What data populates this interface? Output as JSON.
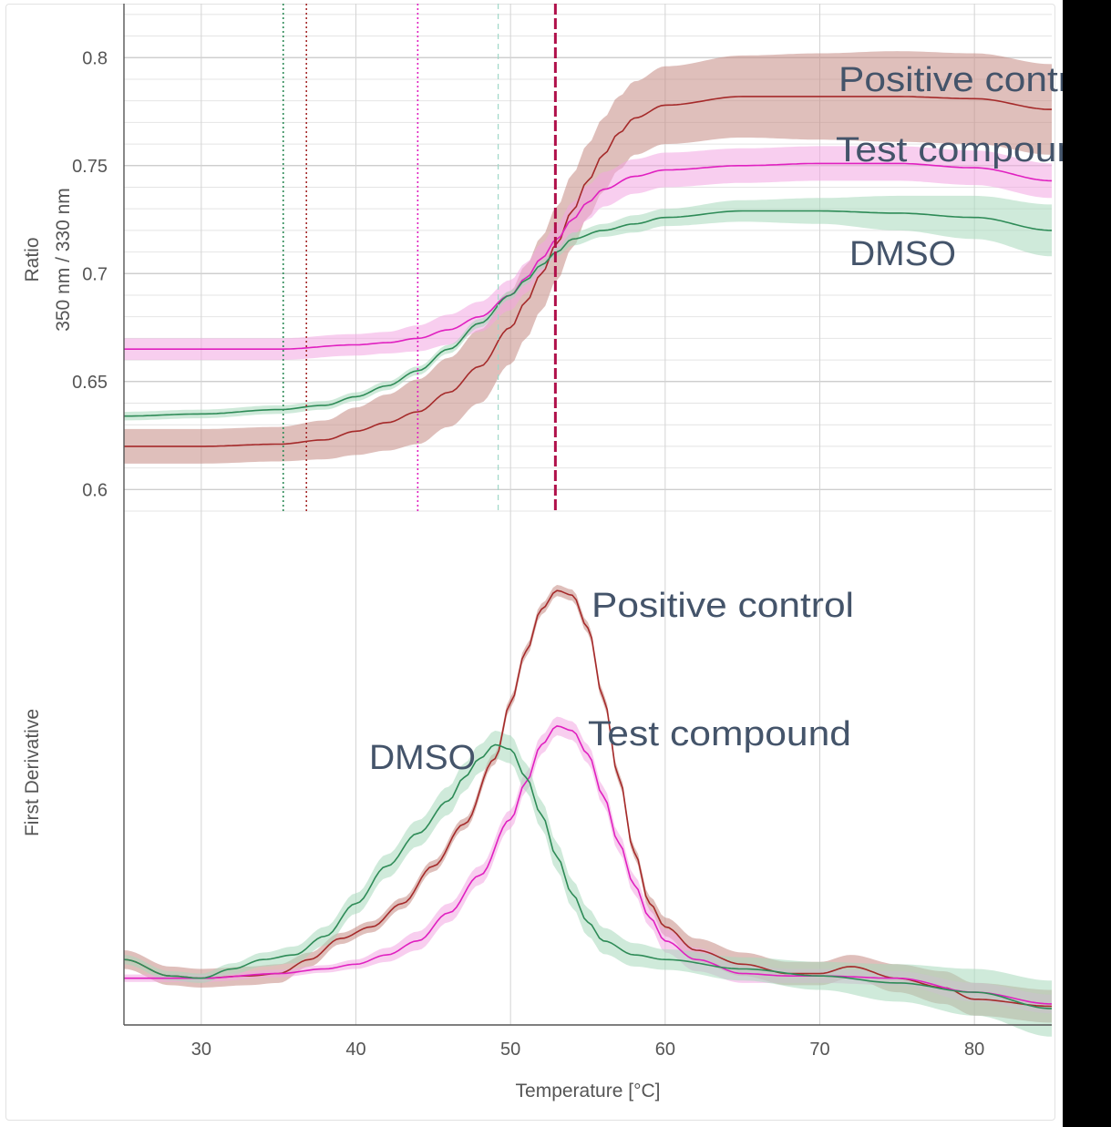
{
  "chart_data": [
    {
      "type": "line",
      "ylabel": [
        "Ratio",
        "350 nm / 330 nm"
      ],
      "xlim": [
        25,
        85
      ],
      "ylim": [
        0.59,
        0.825
      ],
      "y_ticks": [
        0.6,
        0.65,
        0.7,
        0.75,
        0.8
      ],
      "y_tick_labels": [
        "0.6",
        "0.65",
        "0.7",
        "0.75",
        "0.8"
      ],
      "grid": true,
      "series": [
        {
          "name": "Positive control",
          "color": "#a52a2a",
          "band_color": "#c48a84",
          "x": [
            25,
            30,
            35,
            38,
            40,
            42,
            44,
            46,
            48,
            50,
            51,
            52,
            53,
            54,
            55,
            56,
            57,
            58,
            60,
            65,
            70,
            75,
            80,
            85
          ],
          "y": [
            0.62,
            0.62,
            0.621,
            0.623,
            0.627,
            0.631,
            0.636,
            0.645,
            0.657,
            0.675,
            0.687,
            0.7,
            0.714,
            0.729,
            0.743,
            0.755,
            0.765,
            0.772,
            0.778,
            0.782,
            0.782,
            0.782,
            0.781,
            0.776
          ],
          "band": [
            0.008,
            0.008,
            0.008,
            0.009,
            0.011,
            0.013,
            0.015,
            0.016,
            0.017,
            0.017,
            0.017,
            0.017,
            0.017,
            0.017,
            0.017,
            0.017,
            0.017,
            0.017,
            0.018,
            0.019,
            0.02,
            0.021,
            0.021,
            0.021
          ]
        },
        {
          "name": "Test compound",
          "color": "#e020c0",
          "band_color": "#f2a6e2",
          "x": [
            25,
            30,
            35,
            40,
            42,
            44,
            46,
            48,
            50,
            51,
            52,
            53,
            54,
            55,
            56,
            58,
            60,
            65,
            70,
            75,
            80,
            85
          ],
          "y": [
            0.665,
            0.665,
            0.665,
            0.667,
            0.668,
            0.67,
            0.674,
            0.68,
            0.69,
            0.698,
            0.707,
            0.716,
            0.725,
            0.733,
            0.739,
            0.745,
            0.748,
            0.75,
            0.751,
            0.751,
            0.749,
            0.743
          ],
          "band": [
            0.005,
            0.005,
            0.005,
            0.005,
            0.005,
            0.006,
            0.007,
            0.007,
            0.007,
            0.007,
            0.007,
            0.007,
            0.008,
            0.008,
            0.008,
            0.008,
            0.008,
            0.008,
            0.008,
            0.008,
            0.008,
            0.008
          ]
        },
        {
          "name": "DMSO",
          "color": "#2e8b57",
          "band_color": "#a8d8bc",
          "x": [
            25,
            30,
            35,
            38,
            40,
            42,
            44,
            46,
            48,
            50,
            51,
            52,
            53,
            54,
            56,
            58,
            60,
            65,
            70,
            75,
            80,
            85
          ],
          "y": [
            0.634,
            0.635,
            0.637,
            0.639,
            0.643,
            0.648,
            0.655,
            0.665,
            0.677,
            0.69,
            0.697,
            0.704,
            0.71,
            0.716,
            0.72,
            0.723,
            0.726,
            0.729,
            0.729,
            0.728,
            0.726,
            0.72
          ],
          "band": [
            0.002,
            0.002,
            0.002,
            0.002,
            0.002,
            0.002,
            0.002,
            0.002,
            0.002,
            0.002,
            0.002,
            0.002,
            0.002,
            0.003,
            0.003,
            0.004,
            0.004,
            0.005,
            0.006,
            0.008,
            0.01,
            0.012
          ]
        }
      ],
      "vlines": [
        {
          "x": 35.3,
          "color": "#2e8b57",
          "style": "dotted"
        },
        {
          "x": 36.8,
          "color": "#a52a2a",
          "style": "dotted"
        },
        {
          "x": 44,
          "color": "#e020c0",
          "style": "dotted"
        },
        {
          "x": 49.2,
          "color": "#9fd8c8",
          "style": "dashed"
        },
        {
          "x": 52.9,
          "color": "#b0104a",
          "style": "dashed-bold"
        }
      ],
      "annotations": [
        "Positive control",
        "Test compound",
        "DMSO"
      ]
    },
    {
      "type": "line",
      "xlabel": "Temperature [°C]",
      "ylabel": "First Derivative",
      "xlim": [
        25,
        85
      ],
      "ylim": [
        -0.1,
        1.0
      ],
      "x_ticks": [
        30,
        40,
        50,
        60,
        70,
        80
      ],
      "x_tick_labels": [
        "30",
        "40",
        "50",
        "60",
        "70",
        "80"
      ],
      "grid": true,
      "series": [
        {
          "name": "Positive control",
          "color": "#a52a2a",
          "band_color": "#c48a84",
          "x": [
            25,
            28,
            30,
            33,
            35,
            37,
            39,
            41,
            43,
            45,
            47,
            49,
            50,
            51,
            52,
            53,
            54,
            55,
            56,
            57,
            58,
            59,
            60,
            62,
            65,
            68,
            70,
            72,
            75,
            78,
            80,
            85
          ],
          "y": [
            0.04,
            0.005,
            0.0,
            0.005,
            0.01,
            0.04,
            0.085,
            0.11,
            0.16,
            0.24,
            0.33,
            0.47,
            0.59,
            0.7,
            0.79,
            0.83,
            0.82,
            0.75,
            0.6,
            0.43,
            0.27,
            0.16,
            0.11,
            0.06,
            0.03,
            0.01,
            0.01,
            0.025,
            0.0,
            -0.02,
            -0.045,
            -0.06
          ],
          "band": [
            0.02,
            0.02,
            0.02,
            0.02,
            0.02,
            0.015,
            0.012,
            0.012,
            0.012,
            0.012,
            0.012,
            0.012,
            0.012,
            0.012,
            0.012,
            0.012,
            0.012,
            0.012,
            0.012,
            0.012,
            0.012,
            0.015,
            0.02,
            0.025,
            0.025,
            0.025,
            0.025,
            0.025,
            0.03,
            0.035,
            0.035,
            0.035
          ]
        },
        {
          "name": "Test compound",
          "color": "#e020c0",
          "band_color": "#f2a6e2",
          "x": [
            25,
            30,
            35,
            38,
            40,
            42,
            44,
            46,
            48,
            50,
            51,
            52,
            53,
            54,
            55,
            56,
            57,
            58,
            59,
            60,
            62,
            65,
            68,
            70,
            75,
            80,
            85
          ],
          "y": [
            0.0,
            0.0,
            0.01,
            0.02,
            0.03,
            0.05,
            0.08,
            0.14,
            0.22,
            0.34,
            0.42,
            0.5,
            0.54,
            0.53,
            0.48,
            0.39,
            0.29,
            0.2,
            0.13,
            0.08,
            0.04,
            0.01,
            0.005,
            0.005,
            0.0,
            -0.03,
            -0.055
          ],
          "band": [
            0.008,
            0.008,
            0.008,
            0.008,
            0.01,
            0.015,
            0.02,
            0.02,
            0.02,
            0.02,
            0.02,
            0.02,
            0.02,
            0.02,
            0.02,
            0.02,
            0.02,
            0.02,
            0.02,
            0.025,
            0.025,
            0.02,
            0.015,
            0.015,
            0.015,
            0.02,
            0.02
          ]
        },
        {
          "name": "DMSO",
          "color": "#2e8b57",
          "band_color": "#a8d8bc",
          "x": [
            25,
            28,
            30,
            32,
            34,
            36,
            38,
            40,
            42,
            44,
            46,
            47,
            48,
            49,
            50,
            51,
            52,
            53,
            54,
            55,
            56,
            58,
            60,
            65,
            70,
            75,
            80,
            85
          ],
          "y": [
            0.04,
            0.005,
            0.0,
            0.02,
            0.04,
            0.05,
            0.09,
            0.16,
            0.24,
            0.31,
            0.38,
            0.43,
            0.47,
            0.5,
            0.49,
            0.43,
            0.35,
            0.26,
            0.18,
            0.12,
            0.08,
            0.05,
            0.04,
            0.02,
            0.005,
            -0.01,
            -0.03,
            -0.065
          ],
          "band": [
            0.01,
            0.01,
            0.01,
            0.012,
            0.015,
            0.018,
            0.02,
            0.022,
            0.025,
            0.028,
            0.03,
            0.03,
            0.03,
            0.03,
            0.03,
            0.03,
            0.03,
            0.03,
            0.03,
            0.03,
            0.028,
            0.025,
            0.022,
            0.025,
            0.03,
            0.04,
            0.05,
            0.06
          ]
        }
      ],
      "annotations": [
        "Positive control",
        "Test compound",
        "DMSO"
      ]
    }
  ]
}
